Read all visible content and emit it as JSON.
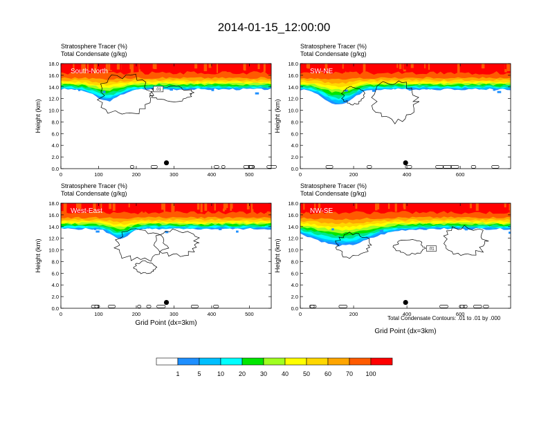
{
  "title": "2014-01-15_12:00:00",
  "footnote": "Total Condensate Contours: .01 to .01 by .000",
  "shared_xlabel": "Grid Point (dx=3km)",
  "colors": {
    "contour_levels": [
      1,
      5,
      10,
      20,
      30,
      40,
      50,
      60,
      70,
      100
    ],
    "fill_colors": [
      "#ffffff",
      "#1e8fff",
      "#00bfff",
      "#00ffff",
      "#00e68a",
      "#00e600",
      "#a0ff20",
      "#ffff00",
      "#ffd700",
      "#ffa500",
      "#ff5a00",
      "#ff0000"
    ]
  },
  "chart_data": [
    {
      "type": "heatmap",
      "panel_label": "South-North",
      "subtitle_line1": "Stratosphere Tracer   (%)",
      "subtitle_line2": "Total Condensate   (g/kg)",
      "ylabel": "Height (km)",
      "xlabel": "",
      "xlim": [
        0,
        558
      ],
      "ylim": [
        0,
        18
      ],
      "xticks": [
        "0",
        "100",
        "200",
        "300",
        "400",
        "500"
      ],
      "yticks": [
        "0.0",
        "2.0",
        "4.0",
        "6.0",
        "8.0",
        "10.0",
        "12.0",
        "14.0",
        "16.0",
        "18.0"
      ],
      "point_marker": {
        "x": 280,
        "y": 1.0
      },
      "contour_label": ".01"
    },
    {
      "type": "heatmap",
      "panel_label": "SW-NE",
      "subtitle_line1": "Stratosphere Tracer   (%)",
      "subtitle_line2": "Total Condensate   (g/kg)",
      "ylabel": "Height (km)",
      "xlabel": "",
      "xlim": [
        0,
        789
      ],
      "ylim": [
        0,
        18
      ],
      "xticks": [
        "0",
        "200",
        "400",
        "600"
      ],
      "yticks": [
        "0.0",
        "2.0",
        "4.0",
        "6.0",
        "8.0",
        "10.0",
        "12.0",
        "14.0",
        "16.0",
        "18.0"
      ],
      "point_marker": {
        "x": 395,
        "y": 1.0
      },
      "contour_label": ""
    },
    {
      "type": "heatmap",
      "panel_label": "West-East",
      "subtitle_line1": "Stratosphere Tracer   (%)",
      "subtitle_line2": "Total Condensate   (g/kg)",
      "ylabel": "Height (km)",
      "xlabel": "Grid Point (dx=3km)",
      "xlim": [
        0,
        558
      ],
      "ylim": [
        0,
        18
      ],
      "xticks": [
        "0",
        "100",
        "200",
        "300",
        "400",
        "500"
      ],
      "yticks": [
        "0.0",
        "2.0",
        "4.0",
        "6.0",
        "8.0",
        "10.0",
        "12.0",
        "14.0",
        "16.0",
        "18.0"
      ],
      "point_marker": {
        "x": 280,
        "y": 1.0
      },
      "contour_label": ""
    },
    {
      "type": "heatmap",
      "panel_label": "NW-SE",
      "subtitle_line1": "Stratosphere Tracer   (%)",
      "subtitle_line2": "Total Condensate   (g/kg)",
      "ylabel": "Height (km)",
      "xlabel": "Grid Point (dx=3km)",
      "xlim": [
        0,
        789
      ],
      "ylim": [
        0,
        18
      ],
      "xticks": [
        "0",
        "200",
        "400",
        "600"
      ],
      "yticks": [
        "0.0",
        "2.0",
        "4.0",
        "6.0",
        "8.0",
        "10.0",
        "12.0",
        "14.0",
        "16.0",
        "18.0"
      ],
      "point_marker": {
        "x": 395,
        "y": 1.0
      },
      "contour_label": ".01"
    }
  ]
}
